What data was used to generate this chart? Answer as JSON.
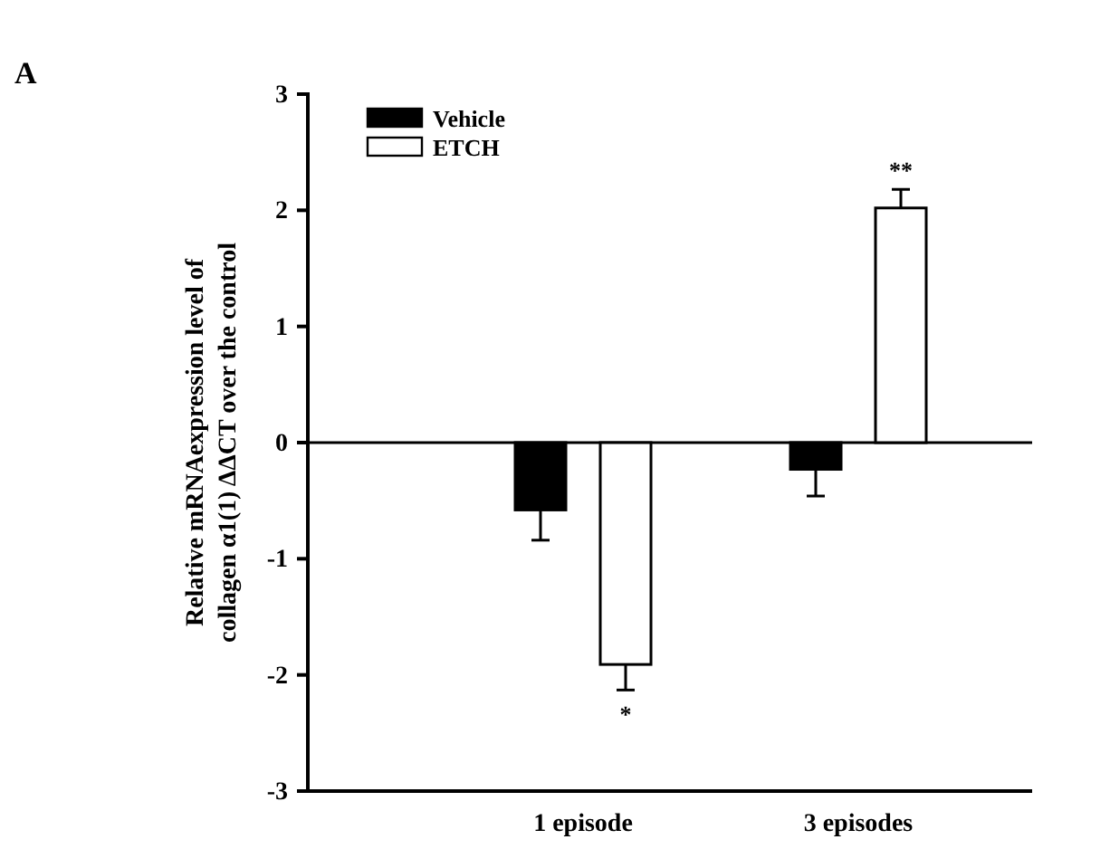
{
  "chart_data": {
    "type": "bar",
    "ylabel": "Relative mRNAexpression level of\ncollagen α1(1) ΔΔCT over the control",
    "categories": [
      "1 episode",
      "3 episodes"
    ],
    "series": [
      {
        "name": "Vehicle",
        "color": "#000000",
        "values": [
          -0.58,
          -0.23
        ],
        "errors": [
          [
            -0.84,
            -0.58
          ],
          [
            -0.46,
            -0.23
          ]
        ]
      },
      {
        "name": "ETCH",
        "color": "#ffffff",
        "values": [
          -1.91,
          2.02
        ],
        "errors": [
          [
            -2.13,
            -1.91
          ],
          [
            2.02,
            2.18
          ]
        ]
      }
    ],
    "ylim": [
      -3,
      3
    ],
    "yticks": [
      -3,
      -2,
      -1,
      0,
      1,
      2,
      3
    ],
    "grid": false,
    "legend": "top left",
    "ref_lines": [
      {
        "axis": "y",
        "value": 0,
        "label": null
      }
    ],
    "annotations": [
      "A",
      "*",
      "**"
    ]
  }
}
